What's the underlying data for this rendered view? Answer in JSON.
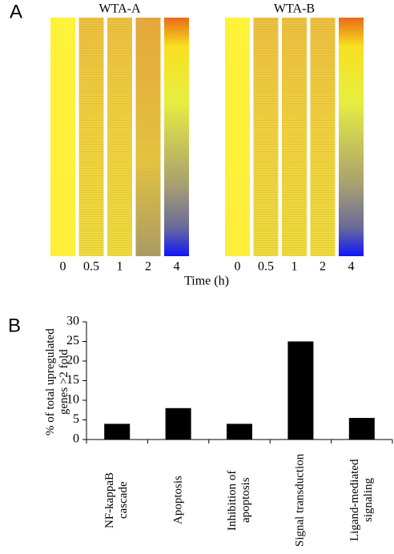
{
  "chart_data": [
    {
      "type": "heatmap",
      "label": "A",
      "panels": [
        "WTA-A",
        "WTA-B"
      ],
      "categories": [
        0,
        0.5,
        1,
        2,
        4
      ],
      "xlabel": "Time (h)"
    },
    {
      "type": "bar",
      "label": "B",
      "ylabel": "% of total upregulated genes >2 fold",
      "categories": [
        "NF-kappaB cascade",
        "Apoptosis",
        "Inhibition of apoptosis",
        "Signal transduction",
        "Ligand-mediated signaling"
      ],
      "values": [
        4,
        8,
        4,
        25,
        5.5
      ],
      "color": "#000000",
      "ylim": [
        0,
        30
      ],
      "yticks": [
        0,
        5,
        10,
        15,
        20,
        25,
        30
      ]
    }
  ]
}
